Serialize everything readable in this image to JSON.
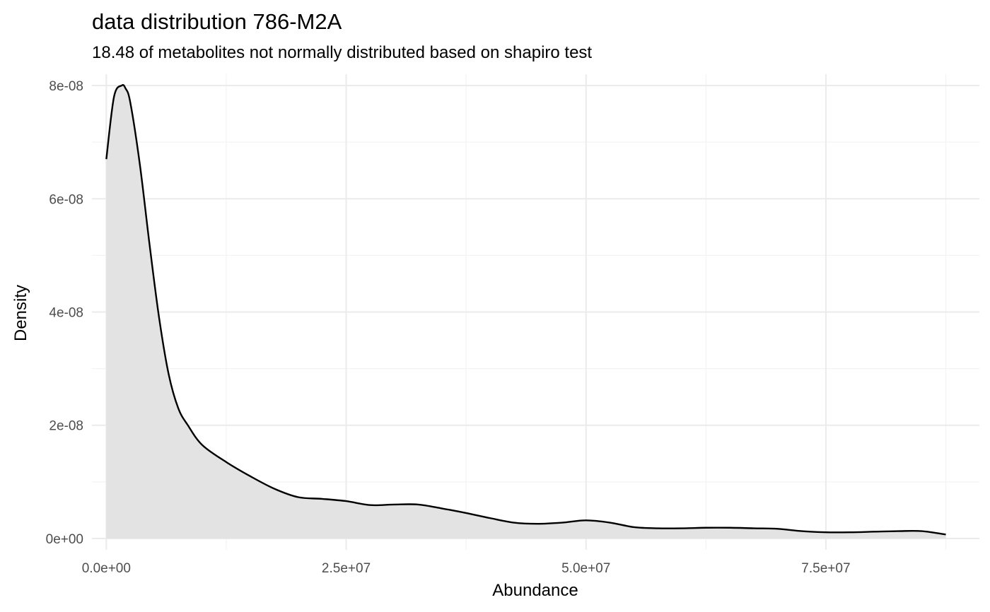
{
  "chart_data": {
    "type": "area",
    "title": "data distribution  786-M2A",
    "subtitle": "18.48  of metabolites not normally distributed based on  shapiro test",
    "xlabel": "Abundance",
    "ylabel": "Density",
    "xlim": [
      -1500000,
      91000000
    ],
    "ylim": [
      -2e-09,
      8.2e-08
    ],
    "x_major_ticks": [
      0,
      25000000,
      50000000,
      75000000
    ],
    "x_tick_labels": [
      "0.0e+00",
      "2.5e+07",
      "5.0e+07",
      "7.5e+07"
    ],
    "y_major_ticks": [
      0,
      2e-08,
      4e-08,
      6e-08,
      8e-08
    ],
    "y_tick_labels": [
      "0e+00",
      "2e-08",
      "4e-08",
      "6e-08",
      "8e-08"
    ],
    "grid": true,
    "legend": "none",
    "colors": {
      "line": "#000000",
      "fill": "#e3e3e3",
      "grid": "#ebebeb"
    },
    "series": [
      {
        "x": [
          0,
          800000,
          1600000,
          2000000,
          2500000,
          3500000,
          4500000,
          5500000,
          6500000,
          7500000,
          8500000,
          10000000,
          12500000,
          15000000,
          17500000,
          20000000,
          22500000,
          25000000,
          27500000,
          30000000,
          32500000,
          35000000,
          37500000,
          40000000,
          42500000,
          45000000,
          47500000,
          50000000,
          52500000,
          55000000,
          57500000,
          60000000,
          62500000,
          65000000,
          67500000,
          70000000,
          72500000,
          75000000,
          77500000,
          80000000,
          82500000,
          85000000,
          87500000
        ],
        "y": [
          6.7e-08,
          7.8e-08,
          8e-08,
          7.95e-08,
          7.7e-08,
          6.6e-08,
          5.2e-08,
          3.9e-08,
          2.9e-08,
          2.3e-08,
          2e-08,
          1.65e-08,
          1.35e-08,
          1.1e-08,
          8.8e-09,
          7.3e-09,
          7e-09,
          6.6e-09,
          5.9e-09,
          6e-09,
          6e-09,
          5.3e-09,
          4.5e-09,
          3.6e-09,
          2.8e-09,
          2.6e-09,
          2.8e-09,
          3.2e-09,
          2.8e-09,
          2e-09,
          1.8e-09,
          1.8e-09,
          1.9e-09,
          1.9e-09,
          1.8e-09,
          1.7e-09,
          1.3e-09,
          1.1e-09,
          1.1e-09,
          1.2e-09,
          1.3e-09,
          1.3e-09,
          7e-10
        ]
      }
    ]
  }
}
